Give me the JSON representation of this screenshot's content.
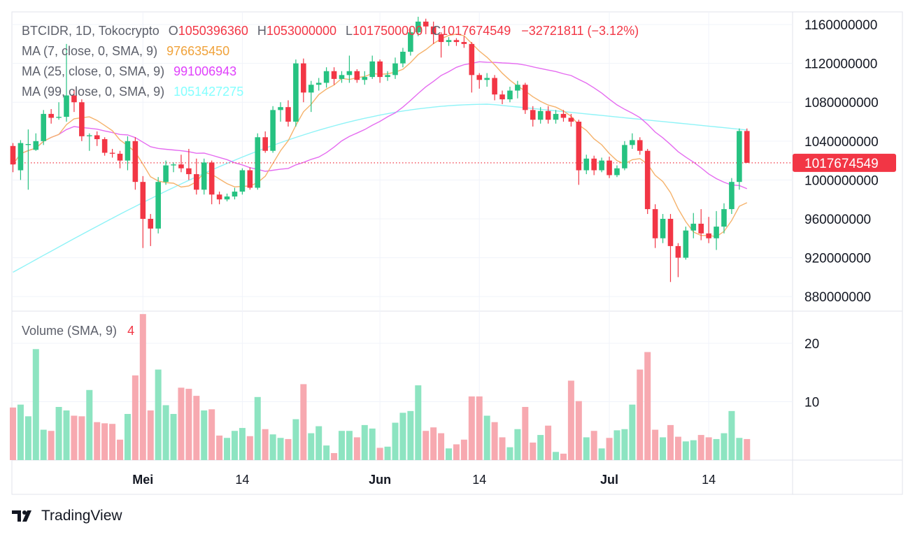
{
  "header": {
    "symbol": "BTCIDR, 1D, Tokocrypto",
    "o_label": "O",
    "o_value": "1050396360",
    "h_label": "H",
    "h_value": "1053000000",
    "l_label": "L",
    "l_value": "1017500000",
    "c_label": "C",
    "c_value": "1017674549",
    "change": "−32721811 (−3.12%)"
  },
  "ma_rows": [
    {
      "label": "MA (7, close, 0, SMA, 9)",
      "value": "976635450",
      "color": "#f0a23a"
    },
    {
      "label": "MA (25, close, 0, SMA, 9)",
      "value": "991006943",
      "color": "#e040fb"
    },
    {
      "label": "MA (99, close, 0, SMA, 9)",
      "value": "1051427275",
      "color": "#84ffff"
    }
  ],
  "volume_legend": {
    "label": "Volume (SMA, 9)",
    "value": "4"
  },
  "colors": {
    "up": "#26c281",
    "down": "#f23645",
    "vol_up": "#8de4c1",
    "vol_down": "#f7a9b0",
    "ma7": "#f5b26b",
    "ma25": "#e56cf0",
    "ma99": "#8ff3f7"
  },
  "brand": "TradingView",
  "chart_data": {
    "type": "candlestick",
    "price_axis": {
      "ticks": [
        880000000,
        920000000,
        960000000,
        1000000000,
        1040000000,
        1080000000,
        1120000000,
        1160000000
      ],
      "tick_labels": [
        "880000000",
        "920000000",
        "960000000",
        "1000000000",
        "1040000000",
        "1080000000",
        "1120000000",
        "1160000000"
      ],
      "range": [
        865000000,
        1173000000
      ]
    },
    "volume_axis": {
      "ticks": [
        10,
        20
      ],
      "tick_labels": [
        "10",
        "20"
      ],
      "range": [
        0,
        25.5
      ]
    },
    "x_labels": [
      {
        "text": "Mei",
        "index": 17,
        "bold": true
      },
      {
        "text": "14",
        "index": 30,
        "bold": false
      },
      {
        "text": "Jun",
        "index": 48,
        "bold": true
      },
      {
        "text": "14",
        "index": 61,
        "bold": false
      },
      {
        "text": "Jul",
        "index": 78,
        "bold": true
      },
      {
        "text": "14",
        "index": 91,
        "bold": false
      }
    ],
    "last_price": {
      "value": 1017674549,
      "label": "1017674549"
    },
    "candles": [
      [
        1035000000,
        1016000000,
        1038000000,
        1008000000,
        9.0
      ],
      [
        1010000000,
        1038000000,
        1041000000,
        1000000000,
        9.5
      ],
      [
        1036000000,
        1037000000,
        1052000000,
        990000000,
        7.5
      ],
      [
        1031000000,
        1040000000,
        1048000000,
        1030000000,
        19.0
      ],
      [
        1040000000,
        1068000000,
        1072000000,
        1036000000,
        5.2
      ],
      [
        1068000000,
        1064000000,
        1073000000,
        1058000000,
        5.0
      ],
      [
        1064000000,
        1065000000,
        1080000000,
        1062000000,
        9.1
      ],
      [
        1065000000,
        1087000000,
        1140000000,
        1060000000,
        8.5
      ],
      [
        1087000000,
        1080000000,
        1093000000,
        1070000000,
        7.6
      ],
      [
        1080000000,
        1045000000,
        1083000000,
        1040000000,
        7.5
      ],
      [
        1045000000,
        1046000000,
        1048000000,
        1030000000,
        12.0
      ],
      [
        1046000000,
        1042000000,
        1050000000,
        1035000000,
        6.5
      ],
      [
        1042000000,
        1028000000,
        1044000000,
        1025000000,
        6.3
      ],
      [
        1028000000,
        1027000000,
        1032000000,
        1023000000,
        6.2
      ],
      [
        1027000000,
        1020000000,
        1030000000,
        1012000000,
        3.5
      ],
      [
        1020000000,
        1040000000,
        1045000000,
        1010000000,
        7.9
      ],
      [
        1040000000,
        998000000,
        1044000000,
        990000000,
        14.5
      ],
      [
        998000000,
        960000000,
        1004000000,
        930000000,
        25.0
      ],
      [
        960000000,
        950000000,
        965000000,
        932000000,
        8.5
      ],
      [
        950000000,
        998000000,
        1003000000,
        945000000,
        15.5
      ],
      [
        998000000,
        1015000000,
        1020000000,
        995000000,
        9.4
      ],
      [
        1015000000,
        1016000000,
        1018000000,
        1008000000,
        7.9
      ],
      [
        1016000000,
        1012000000,
        1026000000,
        1008000000,
        12.4
      ],
      [
        1012000000,
        1006000000,
        1032000000,
        1000000000,
        12.2
      ],
      [
        1006000000,
        990000000,
        1022000000,
        985000000,
        11.0
      ],
      [
        990000000,
        1018000000,
        1022000000,
        985000000,
        8.5
      ],
      [
        1018000000,
        985000000,
        1020000000,
        975000000,
        8.7
      ],
      [
        985000000,
        980000000,
        988000000,
        975000000,
        4.2
      ],
      [
        980000000,
        983000000,
        986000000,
        978000000,
        3.8
      ],
      [
        983000000,
        988000000,
        992000000,
        980000000,
        5.0
      ],
      [
        988000000,
        1010000000,
        1012000000,
        985000000,
        5.5
      ],
      [
        1010000000,
        992000000,
        1013000000,
        990000000,
        4.1
      ],
      [
        992000000,
        1044000000,
        1048000000,
        990000000,
        10.8
      ],
      [
        1044000000,
        1030000000,
        1050000000,
        1028000000,
        5.3
      ],
      [
        1030000000,
        1072000000,
        1076000000,
        1028000000,
        4.4
      ],
      [
        1072000000,
        1075000000,
        1080000000,
        1060000000,
        3.8
      ],
      [
        1075000000,
        1060000000,
        1082000000,
        1055000000,
        3.6
      ],
      [
        1060000000,
        1120000000,
        1124000000,
        1055000000,
        7.0
      ],
      [
        1120000000,
        1090000000,
        1125000000,
        1080000000,
        13.0
      ],
      [
        1090000000,
        1098000000,
        1102000000,
        1070000000,
        4.6
      ],
      [
        1098000000,
        1100000000,
        1105000000,
        1092000000,
        5.8
      ],
      [
        1100000000,
        1112000000,
        1116000000,
        1095000000,
        2.5
      ],
      [
        1112000000,
        1104000000,
        1116000000,
        1098000000,
        1.2
      ],
      [
        1104000000,
        1108000000,
        1112000000,
        1100000000,
        5.0
      ],
      [
        1108000000,
        1112000000,
        1128000000,
        1100000000,
        5.0
      ],
      [
        1112000000,
        1103000000,
        1114000000,
        1100000000,
        3.9
      ],
      [
        1103000000,
        1106000000,
        1112000000,
        1098000000,
        6.0
      ],
      [
        1106000000,
        1122000000,
        1128000000,
        1104000000,
        5.4
      ],
      [
        1122000000,
        1106000000,
        1124000000,
        1100000000,
        2.1
      ],
      [
        1106000000,
        1108000000,
        1112000000,
        1102000000,
        2.3
      ],
      [
        1108000000,
        1120000000,
        1126000000,
        1104000000,
        6.4
      ],
      [
        1120000000,
        1132000000,
        1136000000,
        1116000000,
        8.1
      ],
      [
        1132000000,
        1152000000,
        1156000000,
        1128000000,
        8.4
      ],
      [
        1152000000,
        1163000000,
        1168000000,
        1148000000,
        12.8
      ],
      [
        1163000000,
        1158000000,
        1166000000,
        1150000000,
        5.0
      ],
      [
        1158000000,
        1150000000,
        1163000000,
        1140000000,
        5.6
      ],
      [
        1150000000,
        1142000000,
        1152000000,
        1126000000,
        4.6
      ],
      [
        1142000000,
        1144000000,
        1147000000,
        1138000000,
        2.0
      ],
      [
        1144000000,
        1142000000,
        1146000000,
        1138000000,
        2.7
      ],
      [
        1142000000,
        1140000000,
        1148000000,
        1136000000,
        3.5
      ],
      [
        1140000000,
        1108000000,
        1142000000,
        1090000000,
        10.9
      ],
      [
        1108000000,
        1103000000,
        1110000000,
        1094000000,
        10.9
      ],
      [
        1103000000,
        1105000000,
        1110000000,
        1096000000,
        7.6
      ],
      [
        1105000000,
        1088000000,
        1108000000,
        1082000000,
        6.5
      ],
      [
        1088000000,
        1083000000,
        1092000000,
        1078000000,
        3.9
      ],
      [
        1083000000,
        1092000000,
        1096000000,
        1080000000,
        2.2
      ],
      [
        1092000000,
        1098000000,
        1102000000,
        1084000000,
        5.3
      ],
      [
        1098000000,
        1072000000,
        1100000000,
        1068000000,
        9.1
      ],
      [
        1072000000,
        1062000000,
        1076000000,
        1055000000,
        3.0
      ],
      [
        1062000000,
        1071000000,
        1075000000,
        1058000000,
        4.3
      ],
      [
        1071000000,
        1062000000,
        1076000000,
        1058000000,
        5.9
      ],
      [
        1062000000,
        1068000000,
        1072000000,
        1058000000,
        1.4
      ],
      [
        1068000000,
        1064000000,
        1072000000,
        1060000000,
        1.1
      ],
      [
        1064000000,
        1060000000,
        1068000000,
        1055000000,
        13.6
      ],
      [
        1060000000,
        1010000000,
        1062000000,
        995000000,
        10.1
      ],
      [
        1010000000,
        1022000000,
        1026000000,
        1006000000,
        3.9
      ],
      [
        1022000000,
        1010000000,
        1025000000,
        1005000000,
        5.0
      ],
      [
        1010000000,
        1020000000,
        1023000000,
        1008000000,
        2.0
      ],
      [
        1020000000,
        1005000000,
        1024000000,
        1002000000,
        3.8
      ],
      [
        1005000000,
        1012000000,
        1015000000,
        1003000000,
        5.1
      ],
      [
        1012000000,
        1036000000,
        1040000000,
        1010000000,
        5.3
      ],
      [
        1036000000,
        1041000000,
        1048000000,
        1032000000,
        9.5
      ],
      [
        1041000000,
        1030000000,
        1044000000,
        1026000000,
        15.5
      ],
      [
        1030000000,
        970000000,
        1032000000,
        965000000,
        18.5
      ],
      [
        970000000,
        940000000,
        975000000,
        930000000,
        5.2
      ],
      [
        940000000,
        960000000,
        965000000,
        935000000,
        3.9
      ],
      [
        960000000,
        932000000,
        965000000,
        895000000,
        6.0
      ],
      [
        932000000,
        920000000,
        935000000,
        900000000,
        4.0
      ],
      [
        920000000,
        948000000,
        952000000,
        918000000,
        3.2
      ],
      [
        948000000,
        955000000,
        966000000,
        940000000,
        3.4
      ],
      [
        955000000,
        945000000,
        970000000,
        938000000,
        4.3
      ],
      [
        945000000,
        940000000,
        962000000,
        935000000,
        3.9
      ],
      [
        940000000,
        952000000,
        968000000,
        928000000,
        3.6
      ],
      [
        952000000,
        970000000,
        976000000,
        945000000,
        4.6
      ],
      [
        970000000,
        998000000,
        1002000000,
        965000000,
        8.4
      ],
      [
        998000000,
        1050396360,
        1053000000,
        990000000,
        3.8
      ],
      [
        1050396360,
        1017674549,
        1053000000,
        1017500000,
        3.6
      ]
    ],
    "ma7_end": 976635450,
    "ma25_end": 991006943,
    "ma99_end": 1051427275
  }
}
